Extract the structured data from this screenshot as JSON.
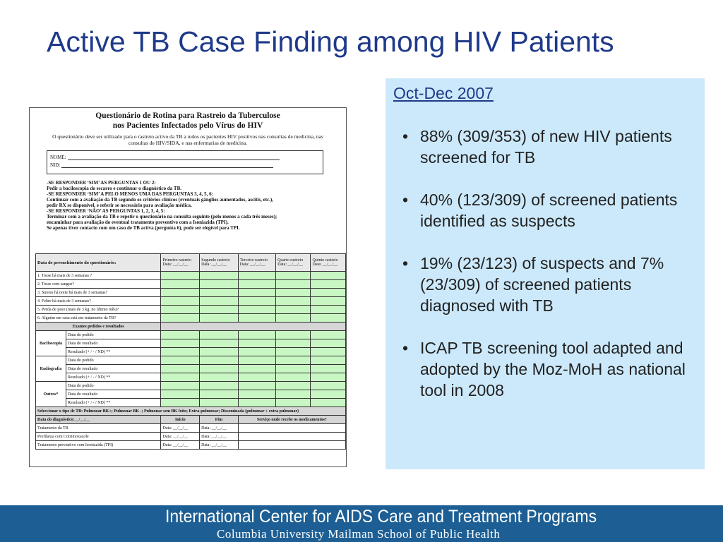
{
  "slide": {
    "title": "Active TB Case Finding among HIV Patients"
  },
  "form": {
    "title_line1": "Questionário de Rotina para Rastreio da Tuberculose",
    "title_line2": "nos Pacientes Infectados pelo Vírus do HIV",
    "intro": "O questionário deve ser utilizado para o rastreio activo da TB a todos os pacientes HIV positivos nas consultas de medicina, nas consultas de HIV/SIDA, e nas enfermarias de medicina.",
    "name_label": "NOME:",
    "nid_label": "NID:",
    "instructions": [
      "-SE RESPONDER ‘SIM’ AS PERGUNTAS 1 OU 2:",
      "Pedir a baciloscopia do escarro e continuar o diagnóstico da TB.",
      "-SE RESPONDER ‘SIM’ A PELO MENOS UMA DAS PERGUNTAS 3, 4, 5, 6:",
      "Continuar com a avaliação da TB segundo os critérios clínicos (eventuais gânglios aumentados, ascitis, etc.),",
      "pedir RX se disponível, e referir se necessário para avaliação médica.",
      "-SE RESPONDER ‘NÃO’ AS PERGUNTAS 1, 2, 3, 4, 5:",
      "Terminar com a avaliação da TB e repetir o questionário na consulta seguinte (pelo menos a cada três meses);",
      "encaminhar para avaliação do eventual tratamento preventivo com a Isoniazida (TPI).",
      "Se apenas tiver contacto com um caso de TB activa (pergunta 6), pode ser elegível para TPI."
    ],
    "header_first": "Data de preenchimento do questionário:",
    "screening_cols": [
      "Primeiro rastreio",
      "Segundo rastreio",
      "Terceiro rastreio",
      "Quarto rastreio",
      "Quinto rastreio"
    ],
    "date_label": "Data: __/__/__",
    "questions": [
      "1. Tosse há mais de 3 semanas ?",
      "2. Tosse com sangue?",
      "3. Suores há noite há mais de 3 semanas?",
      "4. Febre há mais de 3 semanas?",
      "5. Perda de peso (mais de 3 kg. no último mês)?",
      "6. Alguém em casa está em tratamento da TB?"
    ],
    "exams_header": "Exames pedidos e resultados",
    "exam_groups": [
      {
        "name": "Baciloscopia",
        "rows": [
          "Data do pedido",
          "Data do resultado",
          "Resultado (+ / - / ND) **"
        ]
      },
      {
        "name": "Radiografia",
        "rows": [
          "Data do pedido",
          "Data do resultado",
          "Resultado (+ / - / ND) **"
        ]
      },
      {
        "name": "Outros*",
        "rows": [
          "Data do pedido",
          "Data do resultado",
          "Resultado (+ / - / ND) **"
        ]
      }
    ],
    "tb_type_row": "Seleccionar o tipo de TB: Pulmonar BK+; Pulmonar BK -; Pulmonar sem BK feito; Extra-pulmonar; Disseminada (pulmonar + extra pulmonar)",
    "diagnosis_date": "Data do diagnóstico:__/__/__",
    "col_inicio": "Início",
    "col_fim": "Fim",
    "col_servico": "Serviço onde recebe os medicamentos?",
    "treatments": [
      "Tratamento da TB",
      "Profilaxia com Cotrimoxazole",
      "Tratamento preventivo com Isoniazida (TPI)"
    ],
    "treat_date": "Data: __/__/__"
  },
  "panel": {
    "heading": "Oct-Dec 2007",
    "bullet_char": "•",
    "bullets": [
      "88% (309/353) of new HIV patients screened for TB",
      "40% (123/309) of screened patients identified as suspects",
      "19% (23/123) of suspects  and 7% (23/309) of screened patients diagnosed with TB",
      "ICAP TB screening tool adapted and adopted by the Moz-MoH as national tool in 2008"
    ]
  },
  "footer": {
    "org": "International Center for AIDS Care and Treatment Programs",
    "school": "Columbia University Mailman School of Public Health"
  },
  "colors": {
    "title": "#1f3a8a",
    "panel_bg": "#cce9fb",
    "footer_bg": "#1d5f94",
    "form_green": "#c9f7c3"
  }
}
